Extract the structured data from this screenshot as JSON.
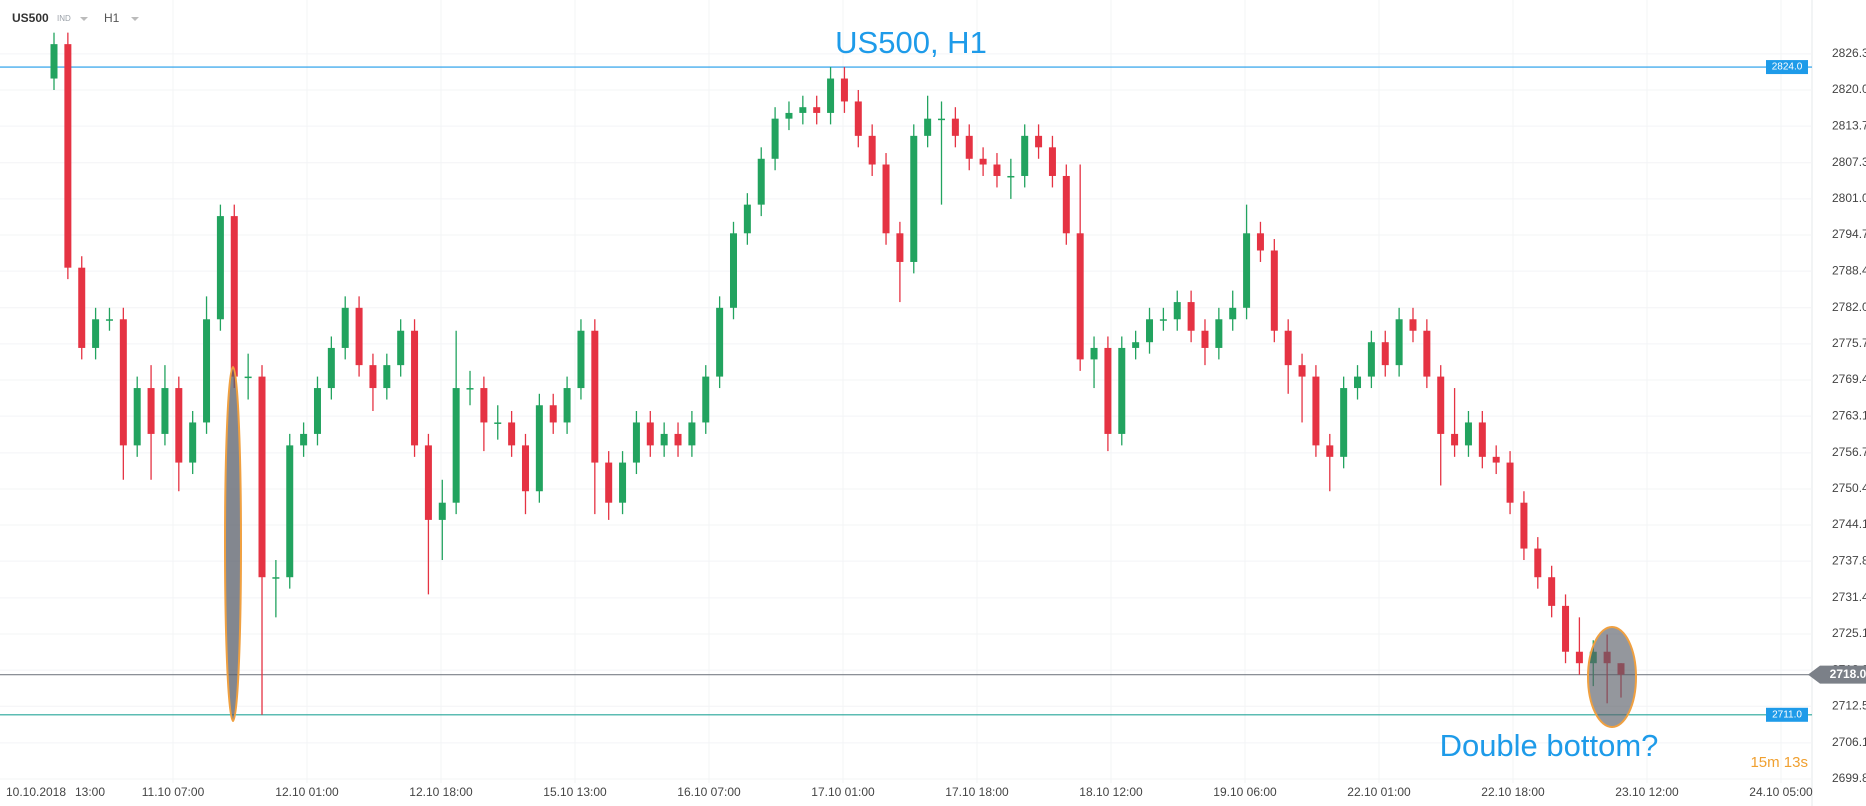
{
  "header": {
    "symbol": "US500",
    "market": "IND",
    "timeframe": "H1"
  },
  "timer": "15m 13s",
  "chart_data": {
    "type": "candlestick",
    "title": "US500, H1",
    "annotations": [
      "Double bottom?"
    ],
    "up_color": "#22a35f",
    "down_color": "#e53343",
    "grid": true,
    "x_labels": [
      "10.10.2018",
      "13:00",
      "11.10 07:00",
      "12.10 01:00",
      "12.10 18:00",
      "15.10 13:00",
      "16.10 07:00",
      "17.10 01:00",
      "17.10 18:00",
      "18.10 12:00",
      "19.10 06:00",
      "22.10 01:00",
      "22.10 18:00",
      "23.10 12:00",
      "24.10 05:00"
    ],
    "ylim": [
      2699.1,
      2835.7
    ],
    "yticks": [
      2826.3,
      {
        "value": 2820,
        "label": "2820.0"
      },
      2813.7,
      2807.3,
      {
        "value": 2801,
        "label": "2801.0"
      },
      2794.7,
      2788.4,
      {
        "value": 2782,
        "label": "2782.0"
      },
      2775.7,
      2769.4,
      2763.1,
      2756.7,
      2750.4,
      2744.1,
      2737.8,
      2731.4,
      2725.1,
      2718.8,
      2712.5,
      2706.1,
      2699.8
    ],
    "levels": [
      {
        "value": 2824,
        "label": "2824.0",
        "color": "#1e9be9"
      },
      {
        "value": 2711,
        "label": "2711.0",
        "color": "#1e9be9",
        "line_color": "#26a69a"
      },
      {
        "value": 2718,
        "label": "2718.0",
        "color": "#7b8088"
      }
    ],
    "open": [
      2822,
      2828,
      2789,
      2775,
      2780,
      2780,
      2758,
      2768,
      2760,
      2768,
      2755,
      2762,
      2780,
      2798,
      2770,
      2770,
      2735,
      2735,
      2758,
      2760,
      2768,
      2775,
      2782,
      2772,
      2768,
      2772,
      2778,
      2758,
      2745,
      2748,
      2768,
      2768,
      2762,
      2762,
      2758,
      2750,
      2765,
      2762,
      2768,
      2778,
      2755,
      2748,
      2755,
      2762,
      2758,
      2760,
      2758,
      2762,
      2770,
      2782,
      2795,
      2800,
      2808,
      2815,
      2816,
      2817,
      2816,
      2822,
      2818,
      2812,
      2807,
      2795,
      2790,
      2812,
      2815,
      2815,
      2812,
      2808,
      2807,
      2805,
      2805,
      2812,
      2810,
      2805,
      2795,
      2773,
      2775,
      2760,
      2775,
      2776,
      2780,
      2780,
      2783,
      2778,
      2775,
      2780,
      2782,
      2795,
      2792,
      2778,
      2772,
      2770,
      2758,
      2756,
      2768,
      2770,
      2776,
      2772,
      2780,
      2778,
      2770,
      2760,
      2758,
      2762,
      2756,
      2755,
      2748,
      2740,
      2735,
      2730,
      2722,
      2720,
      2722,
      2720
    ],
    "high": [
      2830,
      2830,
      2791,
      2782,
      2782,
      2782,
      2770,
      2772,
      2772,
      2770,
      2764,
      2784,
      2800,
      2800,
      2774,
      2772,
      2738,
      2760,
      2762,
      2770,
      2777,
      2784,
      2784,
      2774,
      2774,
      2780,
      2780,
      2760,
      2752,
      2778,
      2771,
      2770,
      2765,
      2764,
      2760,
      2767,
      2767,
      2770,
      2780,
      2780,
      2757,
      2757,
      2764,
      2764,
      2762,
      2762,
      2764,
      2772,
      2784,
      2797,
      2802,
      2810,
      2817,
      2818,
      2819,
      2819,
      2824,
      2824,
      2820,
      2814,
      2809,
      2797,
      2814,
      2819,
      2818,
      2817,
      2814,
      2810,
      2809,
      2808,
      2814,
      2814,
      2812,
      2807,
      2807,
      2777,
      2777,
      2777,
      2778,
      2782,
      2782,
      2785,
      2785,
      2780,
      2782,
      2785,
      2800,
      2797,
      2794,
      2780,
      2774,
      2772,
      2760,
      2770,
      2772,
      2778,
      2778,
      2782,
      2782,
      2780,
      2772,
      2768,
      2764,
      2764,
      2758,
      2757,
      2750,
      2742,
      2737,
      2732,
      2728,
      2724,
      2725,
      2720
    ],
    "low": [
      2820,
      2787,
      2773,
      2773,
      2778,
      2752,
      2756,
      2752,
      2758,
      2750,
      2753,
      2760,
      2778,
      2768,
      2766,
      2711,
      2728,
      2733,
      2756,
      2758,
      2766,
      2773,
      2770,
      2764,
      2766,
      2770,
      2756,
      2732,
      2738,
      2746,
      2765,
      2757,
      2759,
      2756,
      2746,
      2748,
      2760,
      2760,
      2766,
      2746,
      2745,
      2746,
      2753,
      2756,
      2756,
      2756,
      2756,
      2760,
      2768,
      2780,
      2793,
      2798,
      2806,
      2813,
      2814,
      2814,
      2814,
      2816,
      2810,
      2805,
      2793,
      2783,
      2788,
      2810,
      2800,
      2810,
      2806,
      2805,
      2803,
      2801,
      2803,
      2808,
      2803,
      2793,
      2771,
      2768,
      2757,
      2758,
      2773,
      2774,
      2778,
      2778,
      2776,
      2772,
      2773,
      2778,
      2780,
      2790,
      2776,
      2767,
      2762,
      2756,
      2750,
      2754,
      2766,
      2768,
      2770,
      2770,
      2776,
      2768,
      2751,
      2756,
      2756,
      2754,
      2753,
      2746,
      2738,
      2733,
      2728,
      2720,
      2718,
      2716,
      2713,
      2714
    ],
    "close": [
      2828,
      2789,
      2775,
      2780,
      2780,
      2758,
      2768,
      2760,
      2768,
      2755,
      2762,
      2780,
      2798,
      2770,
      2770,
      2735,
      2735,
      2758,
      2760,
      2768,
      2775,
      2782,
      2772,
      2768,
      2772,
      2778,
      2758,
      2745,
      2748,
      2768,
      2768,
      2762,
      2762,
      2758,
      2750,
      2765,
      2762,
      2768,
      2778,
      2755,
      2748,
      2755,
      2762,
      2758,
      2760,
      2758,
      2762,
      2770,
      2782,
      2795,
      2800,
      2808,
      2815,
      2816,
      2817,
      2816,
      2822,
      2818,
      2812,
      2807,
      2795,
      2790,
      2812,
      2815,
      2815,
      2812,
      2808,
      2807,
      2805,
      2805,
      2812,
      2810,
      2805,
      2795,
      2773,
      2775,
      2760,
      2775,
      2776,
      2780,
      2780,
      2783,
      2778,
      2775,
      2780,
      2782,
      2795,
      2792,
      2778,
      2772,
      2770,
      2758,
      2756,
      2768,
      2770,
      2776,
      2772,
      2780,
      2778,
      2770,
      2760,
      2758,
      2762,
      2756,
      2755,
      2748,
      2740,
      2735,
      2730,
      2722,
      2720,
      2722,
      2720,
      2718
    ]
  }
}
